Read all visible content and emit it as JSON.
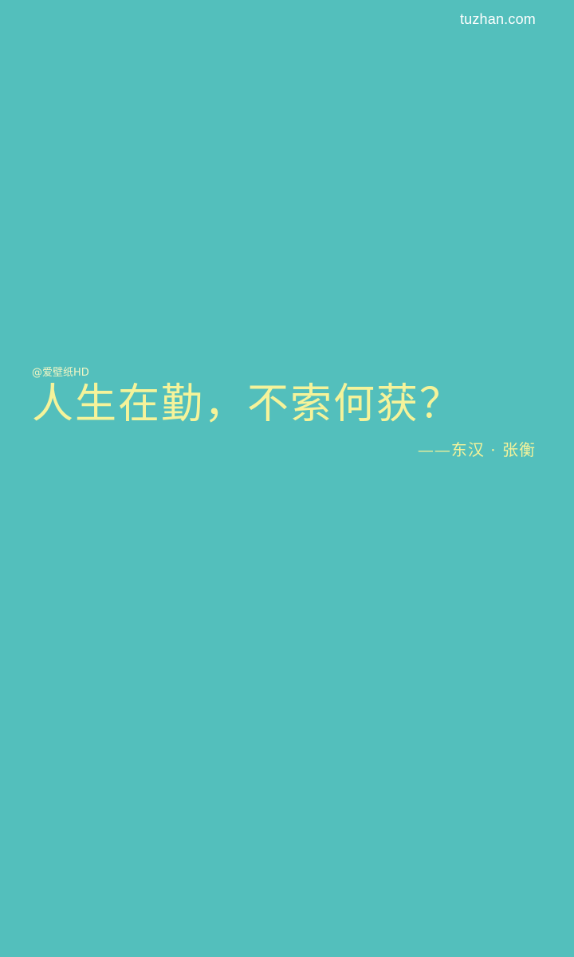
{
  "site_watermark": "tuzhan.com",
  "credit_watermark": "@爱壁纸HD",
  "quote": "人生在勤，不索何获？",
  "author": "——东汉 · 张衡",
  "colors": {
    "background": "#53bfbc",
    "quote_text": "#f5f39a",
    "watermark": "#ffffff"
  }
}
